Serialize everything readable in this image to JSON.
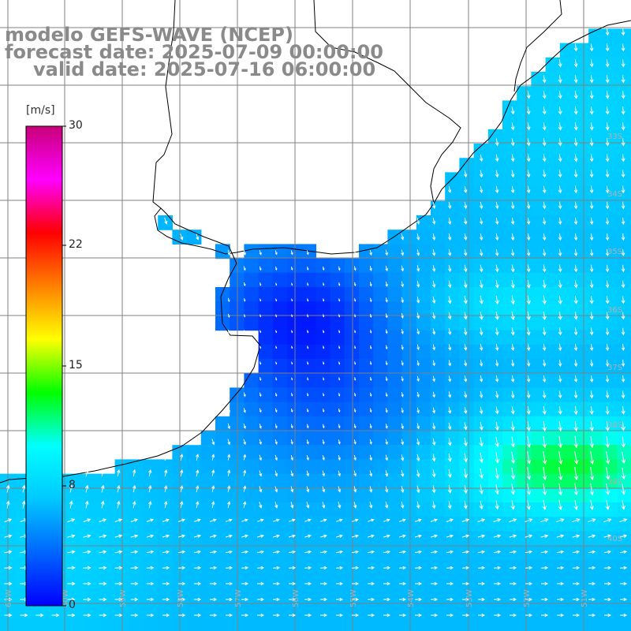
{
  "header": {
    "line1": "modelo GEFS-WAVE (NCEP)",
    "line2": "forecast date: 2025-07-09 00:00:00",
    "line3": "valid date: 2025-07-16 06:00:00"
  },
  "colorbar": {
    "unit": "[m/s]",
    "ticks": [
      "30",
      "22",
      "15",
      "8",
      "0"
    ],
    "min": 0,
    "max": 30,
    "colors": [
      "#0000ff",
      "#0066ff",
      "#00c8ff",
      "#00ffff",
      "#00ff00",
      "#ffff00",
      "#ff8000",
      "#ff0000",
      "#ff00ff",
      "#c80078"
    ]
  },
  "map": {
    "lat_labels": [
      "33S",
      "34S",
      "35S",
      "36S",
      "37S",
      "38S",
      "39S",
      "40S"
    ],
    "lon_labels": [
      "61W",
      "60W",
      "59W",
      "58W",
      "57W",
      "56W",
      "55W",
      "54W",
      "53W",
      "52W",
      "51W"
    ],
    "land_color": "#ffffff",
    "grid_color": "#808080",
    "coast_color": "#000000",
    "arrow_color": "#ffffff"
  }
}
